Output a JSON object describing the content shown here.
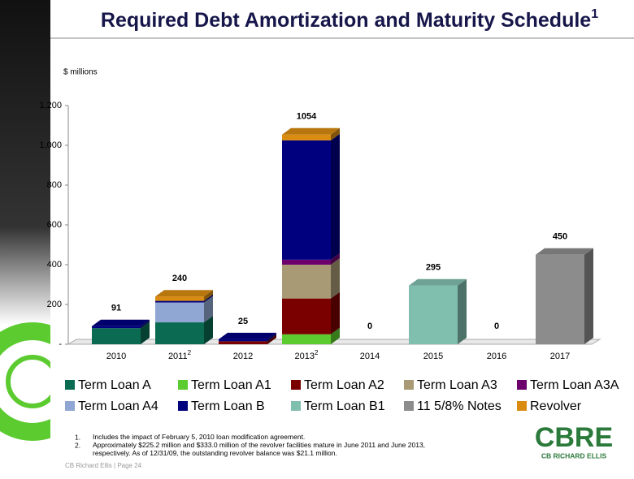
{
  "chart_data": {
    "type": "bar3d",
    "title": "Required Debt Amortization and Maturity Schedule",
    "title_note": "1",
    "y_label": "$ millions",
    "categories": [
      "2010",
      "2011",
      "2012",
      "2013",
      "2014",
      "2015",
      "2016",
      "2017"
    ],
    "category_notes": [
      null,
      "2",
      null,
      "2",
      null,
      null,
      null,
      null
    ],
    "ylim": [
      0,
      1200
    ],
    "yticks": [
      {
        "value": 0,
        "label": "-"
      },
      200,
      400,
      600,
      800,
      {
        "value": 1000,
        "label": "1,000"
      },
      {
        "value": 1200,
        "label": "1,200"
      }
    ],
    "stacked": true,
    "series": [
      {
        "name": "Term Loan A",
        "color": "#0a6b52",
        "values": [
          81,
          110,
          0,
          0,
          0,
          0,
          0,
          0
        ]
      },
      {
        "name": "Term Loan A1",
        "color": "#5ccb2f",
        "values": [
          0,
          0,
          0,
          50,
          0,
          0,
          0,
          0
        ]
      },
      {
        "name": "Term Loan A2",
        "color": "#7a0000",
        "values": [
          0,
          0,
          15,
          180,
          0,
          0,
          0,
          0
        ]
      },
      {
        "name": "Term Loan A3",
        "color": "#a89a74",
        "values": [
          0,
          0,
          0,
          170,
          0,
          0,
          0,
          0
        ]
      },
      {
        "name": "Term Loan A3A",
        "color": "#6c006c",
        "values": [
          0,
          0,
          0,
          25,
          0,
          0,
          0,
          0
        ]
      },
      {
        "name": "Term Loan A4",
        "color": "#8fa7d2",
        "values": [
          0,
          100,
          0,
          0,
          0,
          0,
          0,
          0
        ]
      },
      {
        "name": "Term Loan B",
        "color": "#00007f",
        "values": [
          10,
          8,
          10,
          600,
          0,
          0,
          0,
          0
        ]
      },
      {
        "name": "Term Loan B1",
        "color": "#80bfae",
        "values": [
          0,
          0,
          0,
          0,
          0,
          295,
          0,
          0
        ]
      },
      {
        "name": "11 5/8% Notes",
        "color": "#8c8c8c",
        "values": [
          0,
          0,
          0,
          0,
          0,
          0,
          0,
          450
        ]
      },
      {
        "name": "Revolver",
        "color": "#d98c10",
        "values": [
          0,
          22,
          0,
          29,
          0,
          0,
          0,
          0
        ]
      }
    ],
    "totals": [
      91,
      240,
      25,
      1054,
      0,
      295,
      0,
      450
    ],
    "footnotes": [
      "Includes the impact of February 5, 2010 loan modification agreement.",
      "Approximately $225.2 million and $333.0  million of the revolver facilities mature in June 2011 and June 2013, respectively.  As of 12/31/09, the outstanding revolver balance was $21.1 million."
    ],
    "footnote_markers": [
      "1.",
      "2."
    ],
    "footer": "CB Richard Ellis  |  Page 24",
    "logo": "CBRE",
    "logo_sub": "CB RICHARD ELLIS"
  }
}
